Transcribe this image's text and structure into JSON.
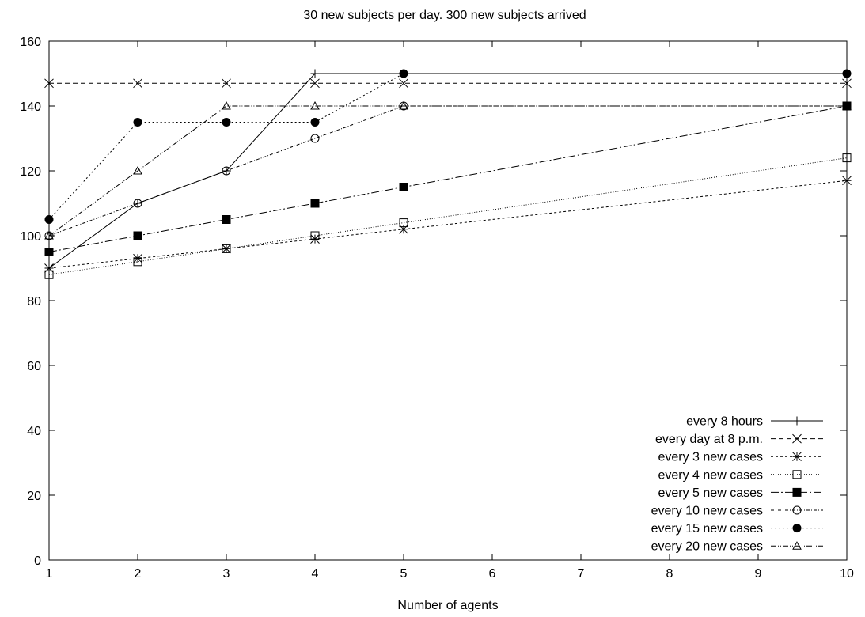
{
  "chart_data": {
    "type": "line",
    "title": "30 new subjects per day. 300 new subjects arrived",
    "xlabel": "Number of agents",
    "ylabel": "",
    "x_ticks": [
      1,
      2,
      3,
      4,
      5,
      6,
      7,
      8,
      9,
      10
    ],
    "y_ticks": [
      0,
      20,
      40,
      60,
      80,
      100,
      120,
      140,
      160
    ],
    "xlim": [
      1,
      10
    ],
    "ylim": [
      0,
      160
    ],
    "grid": false,
    "legend_position": "bottom-right",
    "series": [
      {
        "name": "every 8 hours",
        "marker": "plus",
        "dash": "",
        "x": [
          1,
          2,
          3,
          4,
          5,
          10
        ],
        "y": [
          90,
          110,
          120,
          150,
          150,
          150
        ]
      },
      {
        "name": "every day at 8 p.m.",
        "marker": "cross",
        "dash": "6,4",
        "x": [
          1,
          2,
          3,
          4,
          5,
          10
        ],
        "y": [
          147,
          147,
          147,
          147,
          147,
          147
        ]
      },
      {
        "name": "every 3 new cases",
        "marker": "star",
        "dash": "3,3",
        "x": [
          1,
          2,
          3,
          4,
          5,
          10
        ],
        "y": [
          90,
          93,
          96,
          99,
          102,
          117
        ]
      },
      {
        "name": "every 4 new cases",
        "marker": "open-square",
        "dash": "1,2",
        "x": [
          1,
          2,
          3,
          4,
          5,
          10
        ],
        "y": [
          88,
          92,
          96,
          100,
          104,
          124
        ]
      },
      {
        "name": "every 5 new cases",
        "marker": "filled-square",
        "dash": "10,3,2,3",
        "x": [
          1,
          2,
          3,
          4,
          5,
          10
        ],
        "y": [
          95,
          100,
          105,
          110,
          115,
          140
        ]
      },
      {
        "name": "every 10 new cases",
        "marker": "open-circle",
        "dash": "4,2,1,2",
        "x": [
          1,
          2,
          3,
          4,
          5,
          10
        ],
        "y": [
          100,
          110,
          120,
          130,
          140,
          140
        ]
      },
      {
        "name": "every 15 new cases",
        "marker": "filled-circle",
        "dash": "2,3",
        "x": [
          1,
          2,
          3,
          4,
          5,
          10
        ],
        "y": [
          105,
          135,
          135,
          135,
          150,
          150
        ]
      },
      {
        "name": "every 20 new cases",
        "marker": "open-triangle",
        "dash": "7,2,1,2,1,2",
        "x": [
          1,
          2,
          3,
          4,
          5,
          10
        ],
        "y": [
          100,
          120,
          140,
          140,
          140,
          140
        ]
      }
    ]
  }
}
